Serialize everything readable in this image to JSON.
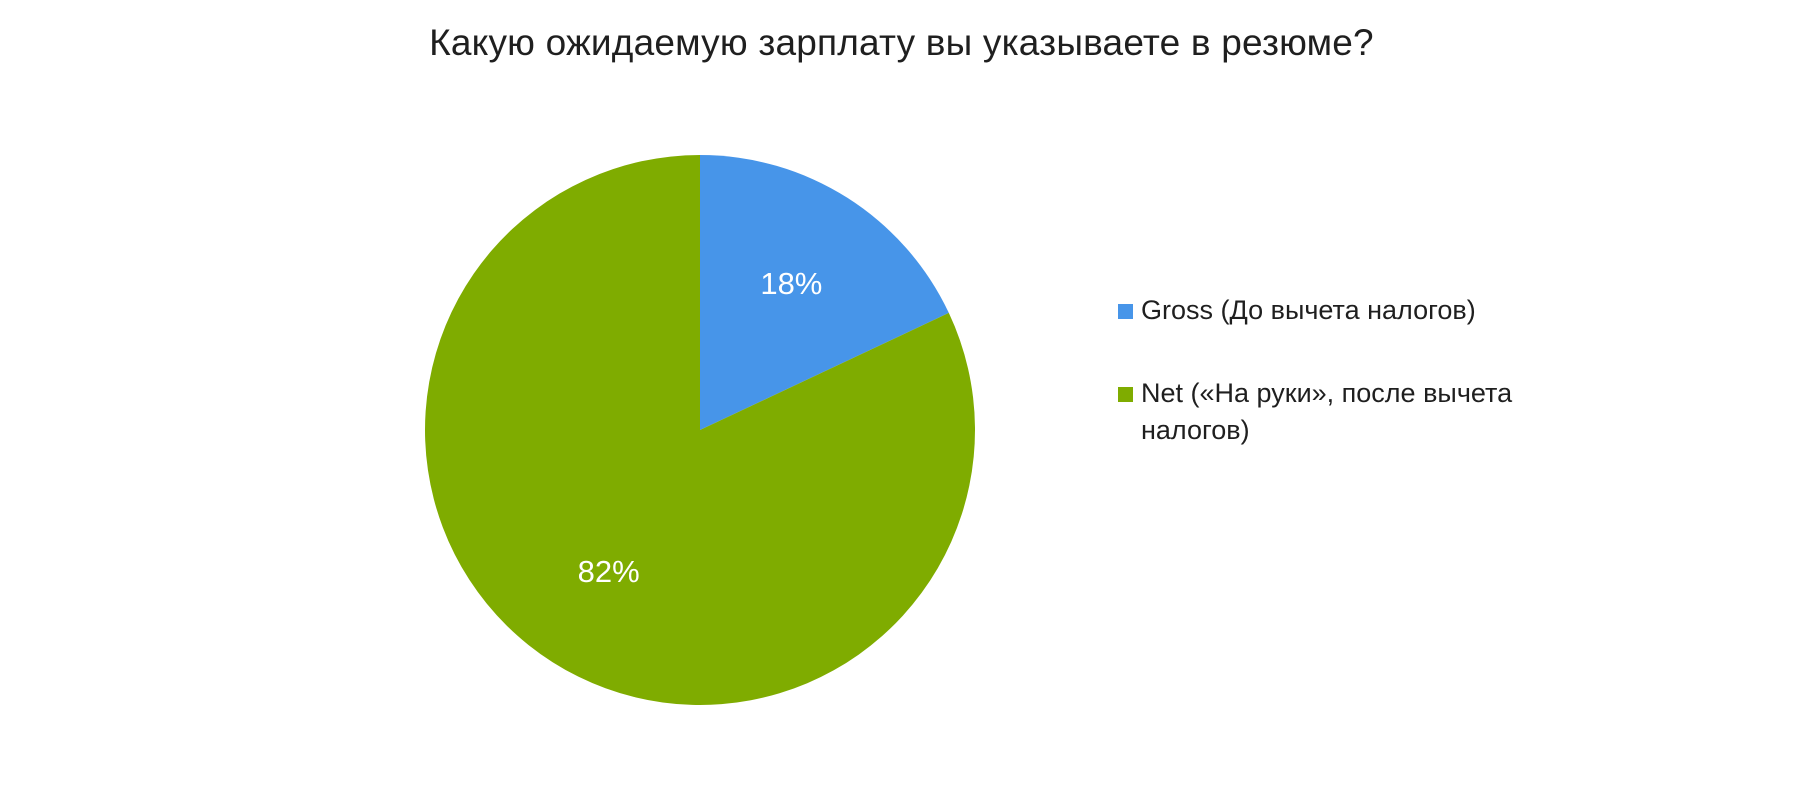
{
  "chart_data": {
    "type": "pie",
    "title": "Какую ожидаемую зарплату вы указываете в резюме?",
    "categories": [
      "Gross (До вычета налогов)",
      "Net («На руки», после вычета налогов)"
    ],
    "values": [
      18,
      82
    ],
    "data_labels": [
      "18%",
      "82%"
    ],
    "colors": [
      "#4795e9",
      "#7fac00"
    ],
    "start_angle": "12 o'clock",
    "direction": "clockwise",
    "legend_position": "right"
  }
}
